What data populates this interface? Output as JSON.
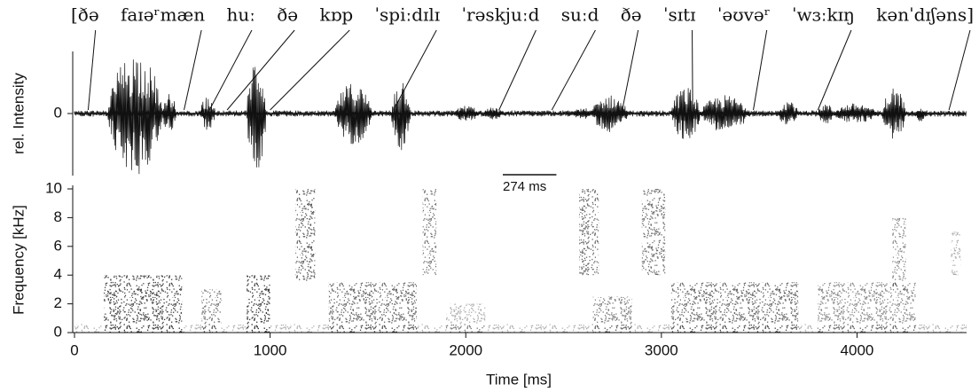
{
  "chart_data": [
    {
      "type": "waveform",
      "ylabel": "rel. Intensity",
      "xlim": [
        0,
        4560
      ],
      "ylim": [
        -3,
        3
      ],
      "yticks": [
        0
      ],
      "color": "#111111",
      "transcription": [
        {
          "text": "[ðə",
          "time": 70
        },
        {
          "text": "faɪəʳmæn",
          "time": 560
        },
        {
          "text": "huː",
          "time": 690
        },
        {
          "text": "ðə",
          "time": 780
        },
        {
          "text": "kɒp",
          "time": 1000
        },
        {
          "text": "ˈspiːdɪlɪ",
          "time": 1630
        },
        {
          "text": "ˈrəskjuːd",
          "time": 2170
        },
        {
          "text": "suːd",
          "time": 2440
        },
        {
          "text": "ðə",
          "time": 2800
        },
        {
          "text": "ˈsɪtɪ",
          "time": 3160
        },
        {
          "text": "ˈəʊvəʳ",
          "time": 3470
        },
        {
          "text": "ˈwɜːkɪŋ",
          "time": 3800
        },
        {
          "text": "kənˈdɪʃəns]",
          "time": 4470
        }
      ],
      "scale_bar": {
        "label": "274 ms",
        "value": 274
      },
      "segments": [
        {
          "start": 0,
          "end": 4560,
          "amplitude": 0.15
        },
        {
          "start": 170,
          "end": 450,
          "amplitude": 3
        },
        {
          "start": 450,
          "end": 520,
          "amplitude": 1
        },
        {
          "start": 640,
          "end": 720,
          "amplitude": 0.8
        },
        {
          "start": 880,
          "end": 980,
          "amplitude": 2.8
        },
        {
          "start": 1330,
          "end": 1520,
          "amplitude": 1.5
        },
        {
          "start": 1620,
          "end": 1720,
          "amplitude": 1.8
        },
        {
          "start": 1940,
          "end": 2070,
          "amplitude": 0.4
        },
        {
          "start": 2090,
          "end": 2190,
          "amplitude": 0.3
        },
        {
          "start": 2550,
          "end": 2640,
          "amplitude": 0.3
        },
        {
          "start": 2640,
          "end": 2830,
          "amplitude": 0.9
        },
        {
          "start": 3050,
          "end": 3200,
          "amplitude": 1.3
        },
        {
          "start": 3200,
          "end": 3450,
          "amplitude": 0.9
        },
        {
          "start": 3600,
          "end": 3700,
          "amplitude": 0.7
        },
        {
          "start": 3800,
          "end": 3880,
          "amplitude": 0.5
        },
        {
          "start": 3880,
          "end": 4100,
          "amplitude": 0.5
        },
        {
          "start": 4130,
          "end": 4250,
          "amplitude": 1.3
        },
        {
          "start": 4300,
          "end": 4350,
          "amplitude": 0.4
        }
      ]
    },
    {
      "type": "spectrogram",
      "xlabel": "Time [ms]",
      "ylabel": "Frequency [kHz]",
      "xlim": [
        0,
        4560
      ],
      "ylim": [
        0,
        10
      ],
      "xticks": [
        0,
        1000,
        2000,
        3000,
        4000
      ],
      "yticks": [
        0,
        2,
        4,
        6,
        8,
        10
      ],
      "color": "#111111",
      "regions": [
        {
          "start": 0,
          "end": 4560,
          "low": 0,
          "high": 0.6,
          "density": 0.35
        },
        {
          "start": 150,
          "end": 550,
          "low": 0,
          "high": 4,
          "density": 0.8
        },
        {
          "start": 650,
          "end": 750,
          "low": 0,
          "high": 3,
          "density": 0.6
        },
        {
          "start": 880,
          "end": 1000,
          "low": 0,
          "high": 4,
          "density": 0.85
        },
        {
          "start": 1130,
          "end": 1230,
          "low": 3.5,
          "high": 10,
          "density": 0.7
        },
        {
          "start": 1300,
          "end": 1750,
          "low": 0,
          "high": 3.5,
          "density": 0.65
        },
        {
          "start": 1780,
          "end": 1850,
          "low": 4,
          "high": 10,
          "density": 0.6
        },
        {
          "start": 1900,
          "end": 2100,
          "low": 0,
          "high": 2,
          "density": 0.35
        },
        {
          "start": 2580,
          "end": 2680,
          "low": 4,
          "high": 10,
          "density": 0.65
        },
        {
          "start": 2650,
          "end": 2850,
          "low": 0,
          "high": 2.5,
          "density": 0.55
        },
        {
          "start": 2900,
          "end": 3020,
          "low": 4,
          "high": 10,
          "density": 0.6
        },
        {
          "start": 3050,
          "end": 3700,
          "low": 0,
          "high": 3.5,
          "density": 0.65
        },
        {
          "start": 3800,
          "end": 4300,
          "low": 0,
          "high": 3.5,
          "density": 0.5
        },
        {
          "start": 4180,
          "end": 4250,
          "low": 3,
          "high": 8,
          "density": 0.5
        },
        {
          "start": 4480,
          "end": 4530,
          "low": 4,
          "high": 7,
          "density": 0.35
        }
      ]
    }
  ]
}
